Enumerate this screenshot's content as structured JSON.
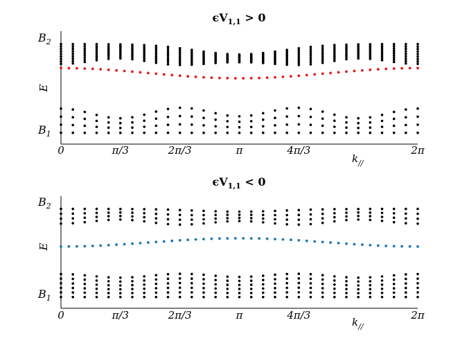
{
  "colors": {
    "bulk": "#000000",
    "surface_positive": "#e31a1c",
    "surface_negative": "#1f77b4"
  },
  "chart_data": [
    {
      "type": "scatter",
      "title": "ϵV1,1 > 0",
      "title_parts": {
        "main": "ϵV",
        "subscript": "1,1",
        "rel": "> 0"
      },
      "xlabel": "k//",
      "xlabel_parts": {
        "main": "k",
        "subscript": "//"
      },
      "ylabel": "E",
      "x_ticks": [
        "0",
        "π/3",
        "2π/3",
        "π",
        "4π/3",
        "2π"
      ],
      "band_labels": [
        {
          "text": "B2",
          "main": "B",
          "subscript": "2"
        },
        {
          "text": "B1",
          "main": "B",
          "subscript": "1"
        }
      ],
      "xlim": [
        0,
        6.283
      ],
      "ylim": [
        -1.2,
        1.2
      ],
      "grid": false,
      "series": [
        {
          "role": "bulk-upper",
          "color": "#000000",
          "top": 0.92,
          "bottom_min": 0.46,
          "depth": 0.45,
          "rows": 9
        },
        {
          "role": "bulk-lower",
          "color": "#000000",
          "top_edge": -0.8,
          "top_max": -0.26,
          "depth": 0.53,
          "bottom": -1.0,
          "rows": 4
        },
        {
          "role": "surface",
          "color": "#e31a1c",
          "edge": 0.4,
          "center": 0.18
        }
      ]
    },
    {
      "type": "scatter",
      "title": "ϵV1,1 < 0",
      "title_parts": {
        "main": "ϵV",
        "subscript": "1,1",
        "rel": "< 0"
      },
      "xlabel": "k//",
      "xlabel_parts": {
        "main": "k",
        "subscript": "//"
      },
      "ylabel": "E",
      "x_ticks": [
        "0",
        "π/3",
        "2π/3",
        "π",
        "4π/3",
        "2π"
      ],
      "band_labels": [
        {
          "text": "B2",
          "main": "B",
          "subscript": "2"
        },
        {
          "text": "B1",
          "main": "B",
          "subscript": "1"
        }
      ],
      "xlim": [
        0,
        6.283
      ],
      "ylim": [
        -1.2,
        1.2
      ],
      "grid": false,
      "series": [
        {
          "role": "bulk-upper",
          "color": "#000000",
          "top": 0.92,
          "bottom_min": 0.57,
          "depth": 0.12,
          "rows": 4
        },
        {
          "role": "bulk-lower",
          "color": "#000000",
          "top_edge": -0.62,
          "top_max": -0.42,
          "depth": 0.16,
          "bottom": -1.0,
          "rows": 6
        },
        {
          "role": "surface",
          "color": "#1f77b4",
          "edge": 0.1,
          "center": 0.28
        }
      ]
    }
  ]
}
